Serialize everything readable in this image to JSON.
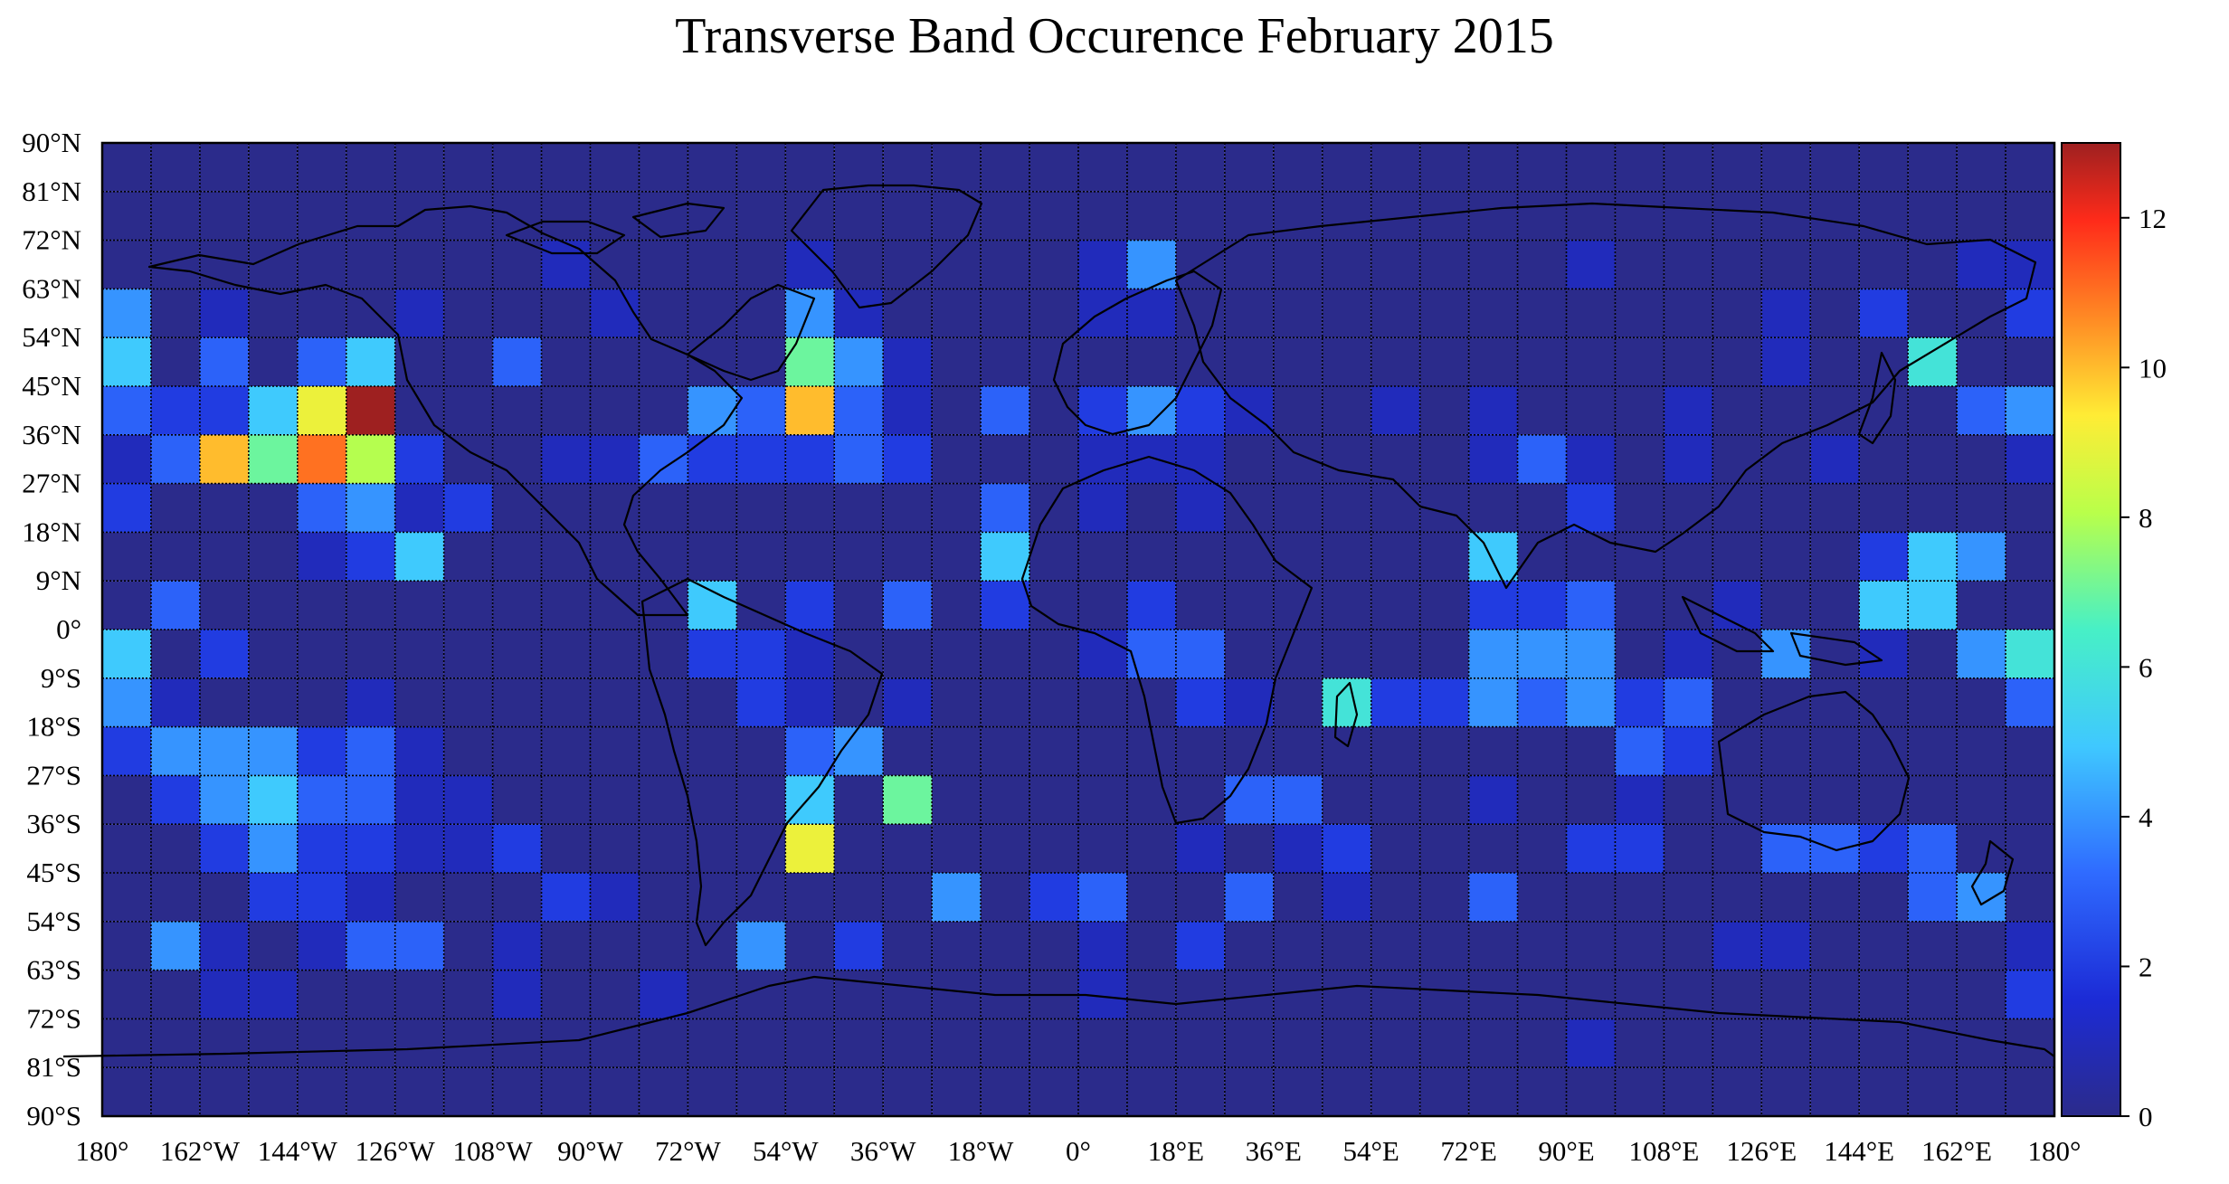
{
  "chart_data": {
    "type": "heatmap",
    "title": "Transverse Band Occurence February 2015",
    "x_tick_labels": [
      "180°",
      "162°W",
      "144°W",
      "126°W",
      "108°W",
      "90°W",
      "72°W",
      "54°W",
      "36°W",
      "18°W",
      "0°",
      "18°E",
      "36°E",
      "54°E",
      "72°E",
      "90°E",
      "108°E",
      "126°E",
      "144°E",
      "162°E",
      "180°"
    ],
    "y_tick_labels": [
      "90°N",
      "81°N",
      "72°N",
      "63°N",
      "54°N",
      "45°N",
      "36°N",
      "27°N",
      "18°N",
      "9°N",
      "0°",
      "9°S",
      "18°S",
      "27°S",
      "36°S",
      "45°S",
      "54°S",
      "63°S",
      "72°S",
      "81°S",
      "90°S"
    ],
    "xlim": [
      -180,
      180
    ],
    "ylim": [
      -90,
      90
    ],
    "cell_size_deg": [
      9,
      9
    ],
    "colormap": "jet",
    "colorbar": {
      "range": [
        0,
        13
      ],
      "tick_labels": [
        "0",
        "2",
        "4",
        "6",
        "8",
        "10",
        "12"
      ],
      "tick_values": [
        0,
        2,
        4,
        6,
        8,
        10,
        12
      ],
      "placement": "right"
    },
    "grid": true,
    "background_value": 0,
    "columns_lon_start": [
      -180,
      -171,
      -162,
      -153,
      -144,
      -135,
      -126,
      -117,
      -108,
      -99,
      -90,
      -81,
      -72,
      -63,
      -54,
      -45,
      -36,
      -27,
      -18,
      -9,
      0,
      9,
      18,
      27,
      36,
      45,
      54,
      63,
      72,
      81,
      90,
      99,
      108,
      117,
      126,
      135,
      144,
      153,
      162,
      171
    ],
    "rows_lat_top": [
      90,
      81,
      72,
      63,
      54,
      45,
      36,
      27,
      18,
      9,
      0,
      -9,
      -18,
      -27,
      -36,
      -45,
      -54,
      -63,
      -72,
      -81
    ],
    "values": [
      [
        0,
        0,
        0,
        0,
        0,
        0,
        0,
        0,
        0,
        0,
        0,
        0,
        0,
        0,
        0,
        0,
        0,
        0,
        0,
        0,
        0,
        0,
        0,
        0,
        0,
        0,
        0,
        0,
        0,
        0,
        0,
        0,
        0,
        0,
        0,
        0,
        0,
        0,
        0,
        0
      ],
      [
        0,
        0,
        0,
        0,
        0,
        0,
        0,
        0,
        0,
        0,
        0,
        0,
        0,
        0,
        0,
        0,
        0,
        0,
        0,
        0,
        0,
        0,
        0,
        0,
        0,
        0,
        0,
        0,
        0,
        0,
        0,
        0,
        0,
        0,
        0,
        0,
        0,
        0,
        0,
        0
      ],
      [
        0,
        0,
        0,
        0,
        0,
        0,
        0,
        0,
        0,
        1,
        0,
        0,
        0,
        0,
        1,
        0,
        0,
        0,
        0,
        0,
        1,
        4,
        0,
        0,
        0,
        0,
        0,
        0,
        0,
        0,
        1,
        0,
        0,
        0,
        0,
        0,
        0,
        0,
        1,
        1
      ],
      [
        4,
        0,
        1,
        0,
        0,
        0,
        1,
        0,
        0,
        0,
        1,
        0,
        0,
        0,
        4,
        1,
        0,
        0,
        0,
        0,
        1,
        1,
        0,
        0,
        0,
        0,
        0,
        0,
        0,
        0,
        0,
        0,
        0,
        0,
        1,
        0,
        2,
        0,
        0,
        2
      ],
      [
        5,
        0,
        3,
        0,
        3,
        5,
        0,
        0,
        3,
        0,
        0,
        0,
        0,
        0,
        7,
        4,
        1,
        0,
        0,
        0,
        0,
        0,
        0,
        0,
        0,
        0,
        0,
        0,
        0,
        0,
        0,
        0,
        0,
        0,
        1,
        0,
        0,
        6,
        0,
        0
      ],
      [
        3,
        2,
        2,
        5,
        9,
        13,
        0,
        0,
        0,
        0,
        0,
        0,
        4,
        3,
        10,
        3,
        1,
        0,
        3,
        0,
        2,
        4,
        2,
        1,
        0,
        0,
        1,
        0,
        1,
        0,
        0,
        0,
        1,
        0,
        0,
        0,
        0,
        0,
        3,
        4
      ],
      [
        1,
        3,
        10,
        7,
        11,
        8,
        2,
        0,
        0,
        1,
        1,
        3,
        2,
        2,
        2,
        3,
        2,
        0,
        0,
        0,
        1,
        1,
        1,
        0,
        0,
        0,
        0,
        0,
        1,
        3,
        1,
        0,
        1,
        0,
        0,
        1,
        0,
        0,
        0,
        1
      ],
      [
        2,
        0,
        0,
        0,
        3,
        4,
        1,
        2,
        0,
        0,
        0,
        0,
        0,
        0,
        0,
        0,
        0,
        0,
        3,
        0,
        1,
        0,
        1,
        0,
        0,
        0,
        0,
        0,
        0,
        0,
        2,
        0,
        0,
        0,
        0,
        0,
        0,
        0,
        0,
        0
      ],
      [
        0,
        0,
        0,
        0,
        1,
        2,
        5,
        0,
        0,
        0,
        0,
        0,
        0,
        0,
        0,
        0,
        0,
        0,
        5,
        0,
        0,
        0,
        0,
        0,
        0,
        0,
        0,
        0,
        5,
        0,
        0,
        0,
        0,
        0,
        0,
        0,
        2,
        5,
        4,
        0
      ],
      [
        0,
        3,
        0,
        0,
        0,
        0,
        0,
        0,
        0,
        0,
        0,
        0,
        5,
        0,
        2,
        0,
        3,
        0,
        2,
        0,
        0,
        2,
        0,
        0,
        0,
        0,
        0,
        0,
        2,
        2,
        3,
        0,
        0,
        1,
        0,
        0,
        5,
        5,
        0,
        0
      ],
      [
        5,
        0,
        2,
        0,
        0,
        0,
        0,
        0,
        0,
        0,
        0,
        0,
        2,
        2,
        1,
        0,
        0,
        0,
        0,
        0,
        1,
        3,
        3,
        0,
        0,
        0,
        0,
        0,
        4,
        4,
        4,
        0,
        1,
        0,
        4,
        0,
        1,
        0,
        4,
        6
      ],
      [
        4,
        1,
        0,
        0,
        0,
        1,
        0,
        0,
        0,
        0,
        0,
        0,
        0,
        2,
        1,
        0,
        1,
        0,
        0,
        0,
        0,
        0,
        2,
        1,
        0,
        6,
        2,
        2,
        4,
        3,
        4,
        2,
        3,
        0,
        0,
        0,
        0,
        0,
        0,
        3
      ],
      [
        2,
        4,
        4,
        4,
        2,
        3,
        1,
        0,
        0,
        0,
        0,
        0,
        0,
        0,
        3,
        4,
        0,
        0,
        0,
        0,
        0,
        0,
        0,
        0,
        0,
        0,
        0,
        0,
        0,
        0,
        0,
        3,
        2,
        0,
        0,
        0,
        0,
        0,
        0,
        0
      ],
      [
        0,
        2,
        4,
        5,
        3,
        3,
        1,
        1,
        0,
        0,
        0,
        0,
        0,
        0,
        5,
        0,
        7,
        0,
        0,
        0,
        0,
        0,
        0,
        3,
        3,
        0,
        0,
        0,
        1,
        0,
        0,
        1,
        0,
        0,
        0,
        0,
        0,
        0,
        0,
        0
      ],
      [
        0,
        0,
        2,
        4,
        2,
        2,
        1,
        1,
        2,
        0,
        0,
        0,
        0,
        0,
        9,
        0,
        0,
        0,
        0,
        0,
        0,
        0,
        1,
        0,
        1,
        2,
        0,
        0,
        0,
        0,
        2,
        2,
        0,
        0,
        3,
        3,
        2,
        3,
        0,
        0
      ],
      [
        0,
        0,
        0,
        2,
        2,
        1,
        0,
        0,
        0,
        2,
        1,
        0,
        0,
        0,
        0,
        0,
        0,
        4,
        0,
        2,
        3,
        0,
        0,
        3,
        0,
        1,
        0,
        0,
        3,
        0,
        0,
        0,
        0,
        0,
        0,
        0,
        0,
        3,
        4,
        0
      ],
      [
        0,
        4,
        1,
        0,
        1,
        3,
        3,
        0,
        1,
        0,
        0,
        0,
        0,
        4,
        0,
        2,
        0,
        0,
        0,
        0,
        1,
        0,
        2,
        0,
        0,
        0,
        0,
        0,
        0,
        0,
        0,
        0,
        0,
        1,
        1,
        0,
        0,
        0,
        0,
        1
      ],
      [
        0,
        0,
        1,
        1,
        0,
        0,
        0,
        0,
        1,
        0,
        0,
        1,
        0,
        0,
        0,
        0,
        0,
        0,
        0,
        0,
        1,
        0,
        0,
        0,
        0,
        0,
        0,
        0,
        0,
        0,
        0,
        0,
        0,
        0,
        0,
        0,
        0,
        0,
        0,
        2
      ],
      [
        0,
        0,
        0,
        0,
        0,
        0,
        0,
        0,
        0,
        0,
        0,
        0,
        0,
        0,
        0,
        0,
        0,
        0,
        0,
        0,
        0,
        0,
        0,
        0,
        0,
        0,
        0,
        0,
        0,
        0,
        1,
        0,
        0,
        0,
        0,
        0,
        0,
        0,
        0,
        0
      ],
      [
        0,
        0,
        0,
        0,
        0,
        0,
        0,
        0,
        0,
        0,
        0,
        0,
        0,
        0,
        0,
        0,
        0,
        0,
        0,
        0,
        0,
        0,
        0,
        0,
        0,
        0,
        0,
        0,
        0,
        0,
        0,
        0,
        0,
        0,
        0,
        0,
        0,
        0,
        0,
        0
      ]
    ]
  }
}
